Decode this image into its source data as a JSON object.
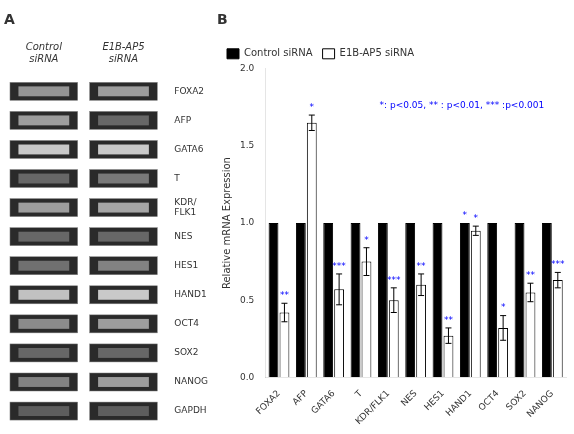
{
  "chart_data": [
    {
      "type": "heatmap",
      "title": "A",
      "x": [
        "Control\nsiRNA",
        "E1B-AP5\nsiRNA"
      ],
      "y": [
        "FOXA2",
        "AFP",
        "GATA6",
        "T",
        "KDR/\nFLK1",
        "NES",
        "HES1",
        "HAND1",
        "OCT4",
        "SOX2",
        "NANOG",
        "GAPDH"
      ],
      "cells": [
        [
          0.6,
          0.55
        ],
        [
          0.55,
          0.85
        ],
        [
          0.3,
          0.3
        ],
        [
          0.85,
          0.75
        ],
        [
          0.55,
          0.5
        ],
        [
          0.85,
          0.85
        ],
        [
          0.8,
          0.7
        ],
        [
          0.35,
          0.3
        ],
        [
          0.65,
          0.55
        ],
        [
          0.85,
          0.85
        ],
        [
          0.7,
          0.55
        ],
        [
          0.9,
          0.9
        ]
      ],
      "grid": false
    },
    {
      "type": "bar",
      "title": "B",
      "categories": [
        "FOXA2",
        "AFP",
        "GATA6",
        "T",
        "KDR/FLK1",
        "NES",
        "HES1",
        "HAND1",
        "OCT4",
        "SOX2",
        "NANOG"
      ],
      "series": [
        {
          "name": "Control siRNA",
          "color": "#000000",
          "values": [
            1.0,
            1.0,
            1.0,
            1.0,
            1.0,
            1.0,
            1.0,
            1.0,
            1.0,
            1.0,
            1.0
          ],
          "significance": [
            null,
            null,
            null,
            null,
            null,
            null,
            null,
            "*",
            null,
            null,
            null
          ]
        },
        {
          "name": "E1B-AP5 siRNA",
          "color": "#ffffff",
          "values": [
            0.42,
            1.65,
            0.57,
            0.75,
            0.5,
            0.6,
            0.27,
            0.95,
            0.32,
            0.55,
            0.63
          ],
          "errors": [
            0.06,
            0.05,
            0.1,
            0.09,
            0.08,
            0.07,
            0.05,
            0.03,
            0.08,
            0.06,
            0.05
          ],
          "significance": [
            "**",
            "*",
            "***",
            "*",
            "***",
            "**",
            "**",
            "*",
            "*",
            "**",
            "***"
          ]
        }
      ],
      "ylabel": "Relative mRNA Expression",
      "ylim": [
        0,
        2.0
      ],
      "yticks": [
        {
          "value": 0,
          "label": "0.0"
        },
        0.5,
        {
          "value": 1.0,
          "label": "1.0"
        },
        1.5,
        {
          "value": 2.0,
          "label": "2.0"
        }
      ],
      "legend": "upper left",
      "grid": false,
      "annotation": "*: p<0.05, ** : p<0.01, *** :p<0.001"
    }
  ]
}
